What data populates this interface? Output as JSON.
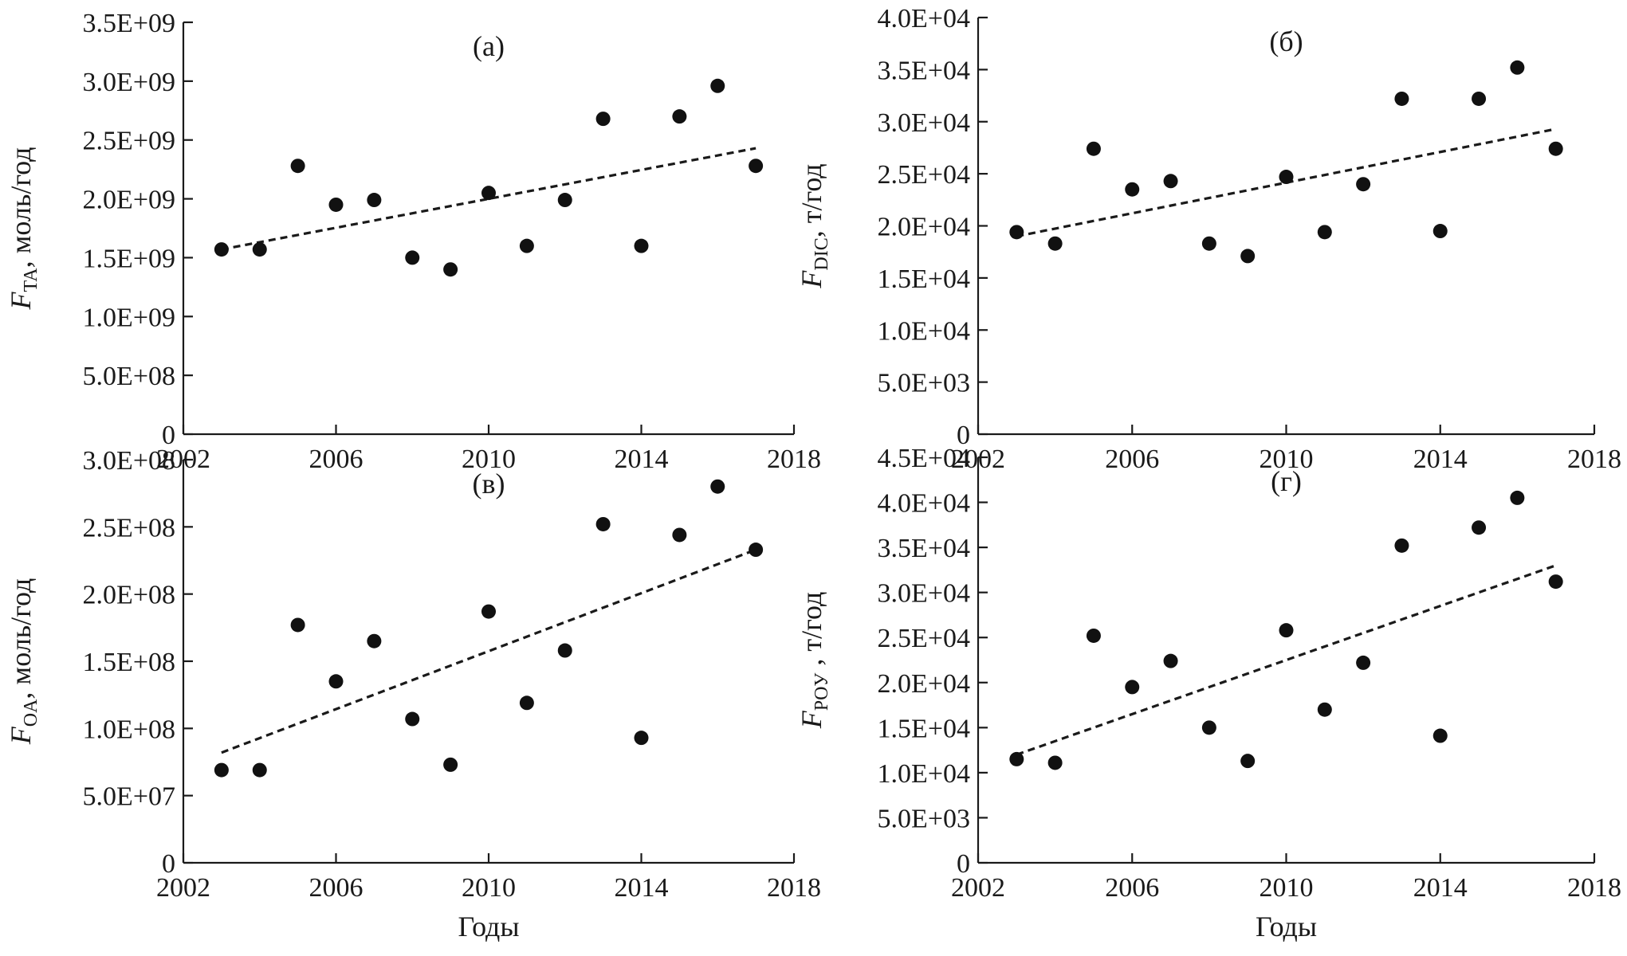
{
  "chart_data": [
    {
      "type": "scatter",
      "panel_label": "(а)",
      "ylabel": {
        "symbol": "F",
        "sub": "TA",
        "rest": ", моль/год"
      },
      "xlabel": "",
      "xlim": [
        2002,
        2018
      ],
      "ylim": [
        0,
        3500000000
      ],
      "x_ticks": [
        "2002",
        "2006",
        "2010",
        "2014",
        "2018"
      ],
      "y_ticks": [
        {
          "v": 0,
          "label": "0"
        },
        {
          "v": 500000000,
          "label": "5.0E+08"
        },
        {
          "v": 1000000000,
          "label": "1.0E+09"
        },
        {
          "v": 1500000000,
          "label": "1.5E+09"
        },
        {
          "v": 2000000000,
          "label": "2.0E+09"
        },
        {
          "v": 2500000000,
          "label": "2.5E+09"
        },
        {
          "v": 3000000000,
          "label": "3.0E+09"
        },
        {
          "v": 3500000000,
          "label": "3.5E+09"
        }
      ],
      "x": [
        2003,
        2004,
        2005,
        2006,
        2007,
        2008,
        2009,
        2010,
        2011,
        2012,
        2013,
        2015,
        2014,
        2016,
        2017
      ],
      "y": [
        1570000000,
        1570000000,
        2280000000,
        1950000000,
        1990000000,
        1500000000,
        1400000000,
        2050000000,
        1600000000,
        1990000000,
        2680000000,
        2700000000,
        1600000000,
        2960000000,
        2280000000
      ],
      "trend": {
        "x": [
          2003,
          2017
        ],
        "y": [
          1570000000,
          2430000000
        ]
      }
    },
    {
      "type": "scatter",
      "panel_label": "(б)",
      "ylabel": {
        "symbol": "F",
        "sub": "DIC",
        "rest": ", т/год"
      },
      "xlabel": "",
      "xlim": [
        2002,
        2018
      ],
      "ylim": [
        0,
        40000
      ],
      "x_ticks": [
        "2002",
        "2006",
        "2010",
        "2014",
        "2018"
      ],
      "y_ticks": [
        {
          "v": 0,
          "label": "0"
        },
        {
          "v": 5000,
          "label": "5.0E+03"
        },
        {
          "v": 10000,
          "label": "1.0E+04"
        },
        {
          "v": 15000,
          "label": "1.5E+04"
        },
        {
          "v": 20000,
          "label": "2.0E+04"
        },
        {
          "v": 25000,
          "label": "2.5E+04"
        },
        {
          "v": 30000,
          "label": "3.0E+04"
        },
        {
          "v": 35000,
          "label": "3.5E+04"
        },
        {
          "v": 40000,
          "label": "4.0E+04"
        }
      ],
      "x": [
        2003,
        2004,
        2005,
        2006,
        2007,
        2008,
        2009,
        2010,
        2011,
        2012,
        2013,
        2014,
        2015,
        2016,
        2017
      ],
      "y": [
        19400,
        18300,
        27400,
        23500,
        24300,
        18300,
        17100,
        24700,
        19400,
        24000,
        32200,
        19500,
        32200,
        35200,
        27400
      ],
      "trend": {
        "x": [
          2003,
          2017
        ],
        "y": [
          19000,
          29300
        ]
      }
    },
    {
      "type": "scatter",
      "panel_label": "(в)",
      "ylabel": {
        "symbol": "F",
        "sub": "OA",
        "rest": ", моль/год"
      },
      "xlabel": "Годы",
      "xlim": [
        2002,
        2018
      ],
      "ylim": [
        0,
        300000000
      ],
      "x_ticks": [
        "2002",
        "2006",
        "2010",
        "2014",
        "2018"
      ],
      "y_ticks": [
        {
          "v": 0,
          "label": "0"
        },
        {
          "v": 50000000,
          "label": "5.0E+07"
        },
        {
          "v": 100000000,
          "label": "1.0E+08"
        },
        {
          "v": 150000000,
          "label": "1.5E+08"
        },
        {
          "v": 200000000,
          "label": "2.0E+08"
        },
        {
          "v": 250000000,
          "label": "2.5E+08"
        },
        {
          "v": 300000000,
          "label": "3.0E+08"
        }
      ],
      "x": [
        2003,
        2004,
        2005,
        2006,
        2007,
        2008,
        2009,
        2010,
        2011,
        2012,
        2013,
        2014,
        2015,
        2016,
        2017
      ],
      "y": [
        69000000,
        69000000,
        177000000,
        135000000,
        165000000,
        107000000,
        73000000,
        187000000,
        119000000,
        158000000,
        252000000,
        93000000,
        244000000,
        280000000,
        233000000
      ],
      "trend": {
        "x": [
          2003,
          2017
        ],
        "y": [
          82000000,
          233000000
        ]
      }
    },
    {
      "type": "scatter",
      "panel_label": "(г)",
      "ylabel": {
        "symbol": "F",
        "sub": "POУ",
        "rest": " , т/год"
      },
      "xlabel": "Годы",
      "xlim": [
        2002,
        2018
      ],
      "ylim": [
        0,
        45000
      ],
      "x_ticks": [
        "2002",
        "2006",
        "2010",
        "2014",
        "2018"
      ],
      "y_ticks": [
        {
          "v": 0,
          "label": "0"
        },
        {
          "v": 5000,
          "label": "5.0E+03"
        },
        {
          "v": 10000,
          "label": "1.0E+04"
        },
        {
          "v": 15000,
          "label": "1.5E+04"
        },
        {
          "v": 20000,
          "label": "2.0E+04"
        },
        {
          "v": 25000,
          "label": "2.5E+04"
        },
        {
          "v": 30000,
          "label": "3.0E+04"
        },
        {
          "v": 35000,
          "label": "3.5E+04"
        },
        {
          "v": 40000,
          "label": "4.0E+04"
        },
        {
          "v": 45000,
          "label": "4.5E+04"
        }
      ],
      "x": [
        2003,
        2004,
        2005,
        2006,
        2007,
        2008,
        2009,
        2010,
        2011,
        2012,
        2013,
        2014,
        2015,
        2016,
        2017
      ],
      "y": [
        11500,
        11100,
        25200,
        19500,
        22400,
        15000,
        11300,
        25800,
        17000,
        22200,
        35200,
        14100,
        37200,
        40500,
        31200
      ],
      "trend": {
        "x": [
          2003,
          2017
        ],
        "y": [
          12000,
          33000
        ]
      }
    }
  ]
}
